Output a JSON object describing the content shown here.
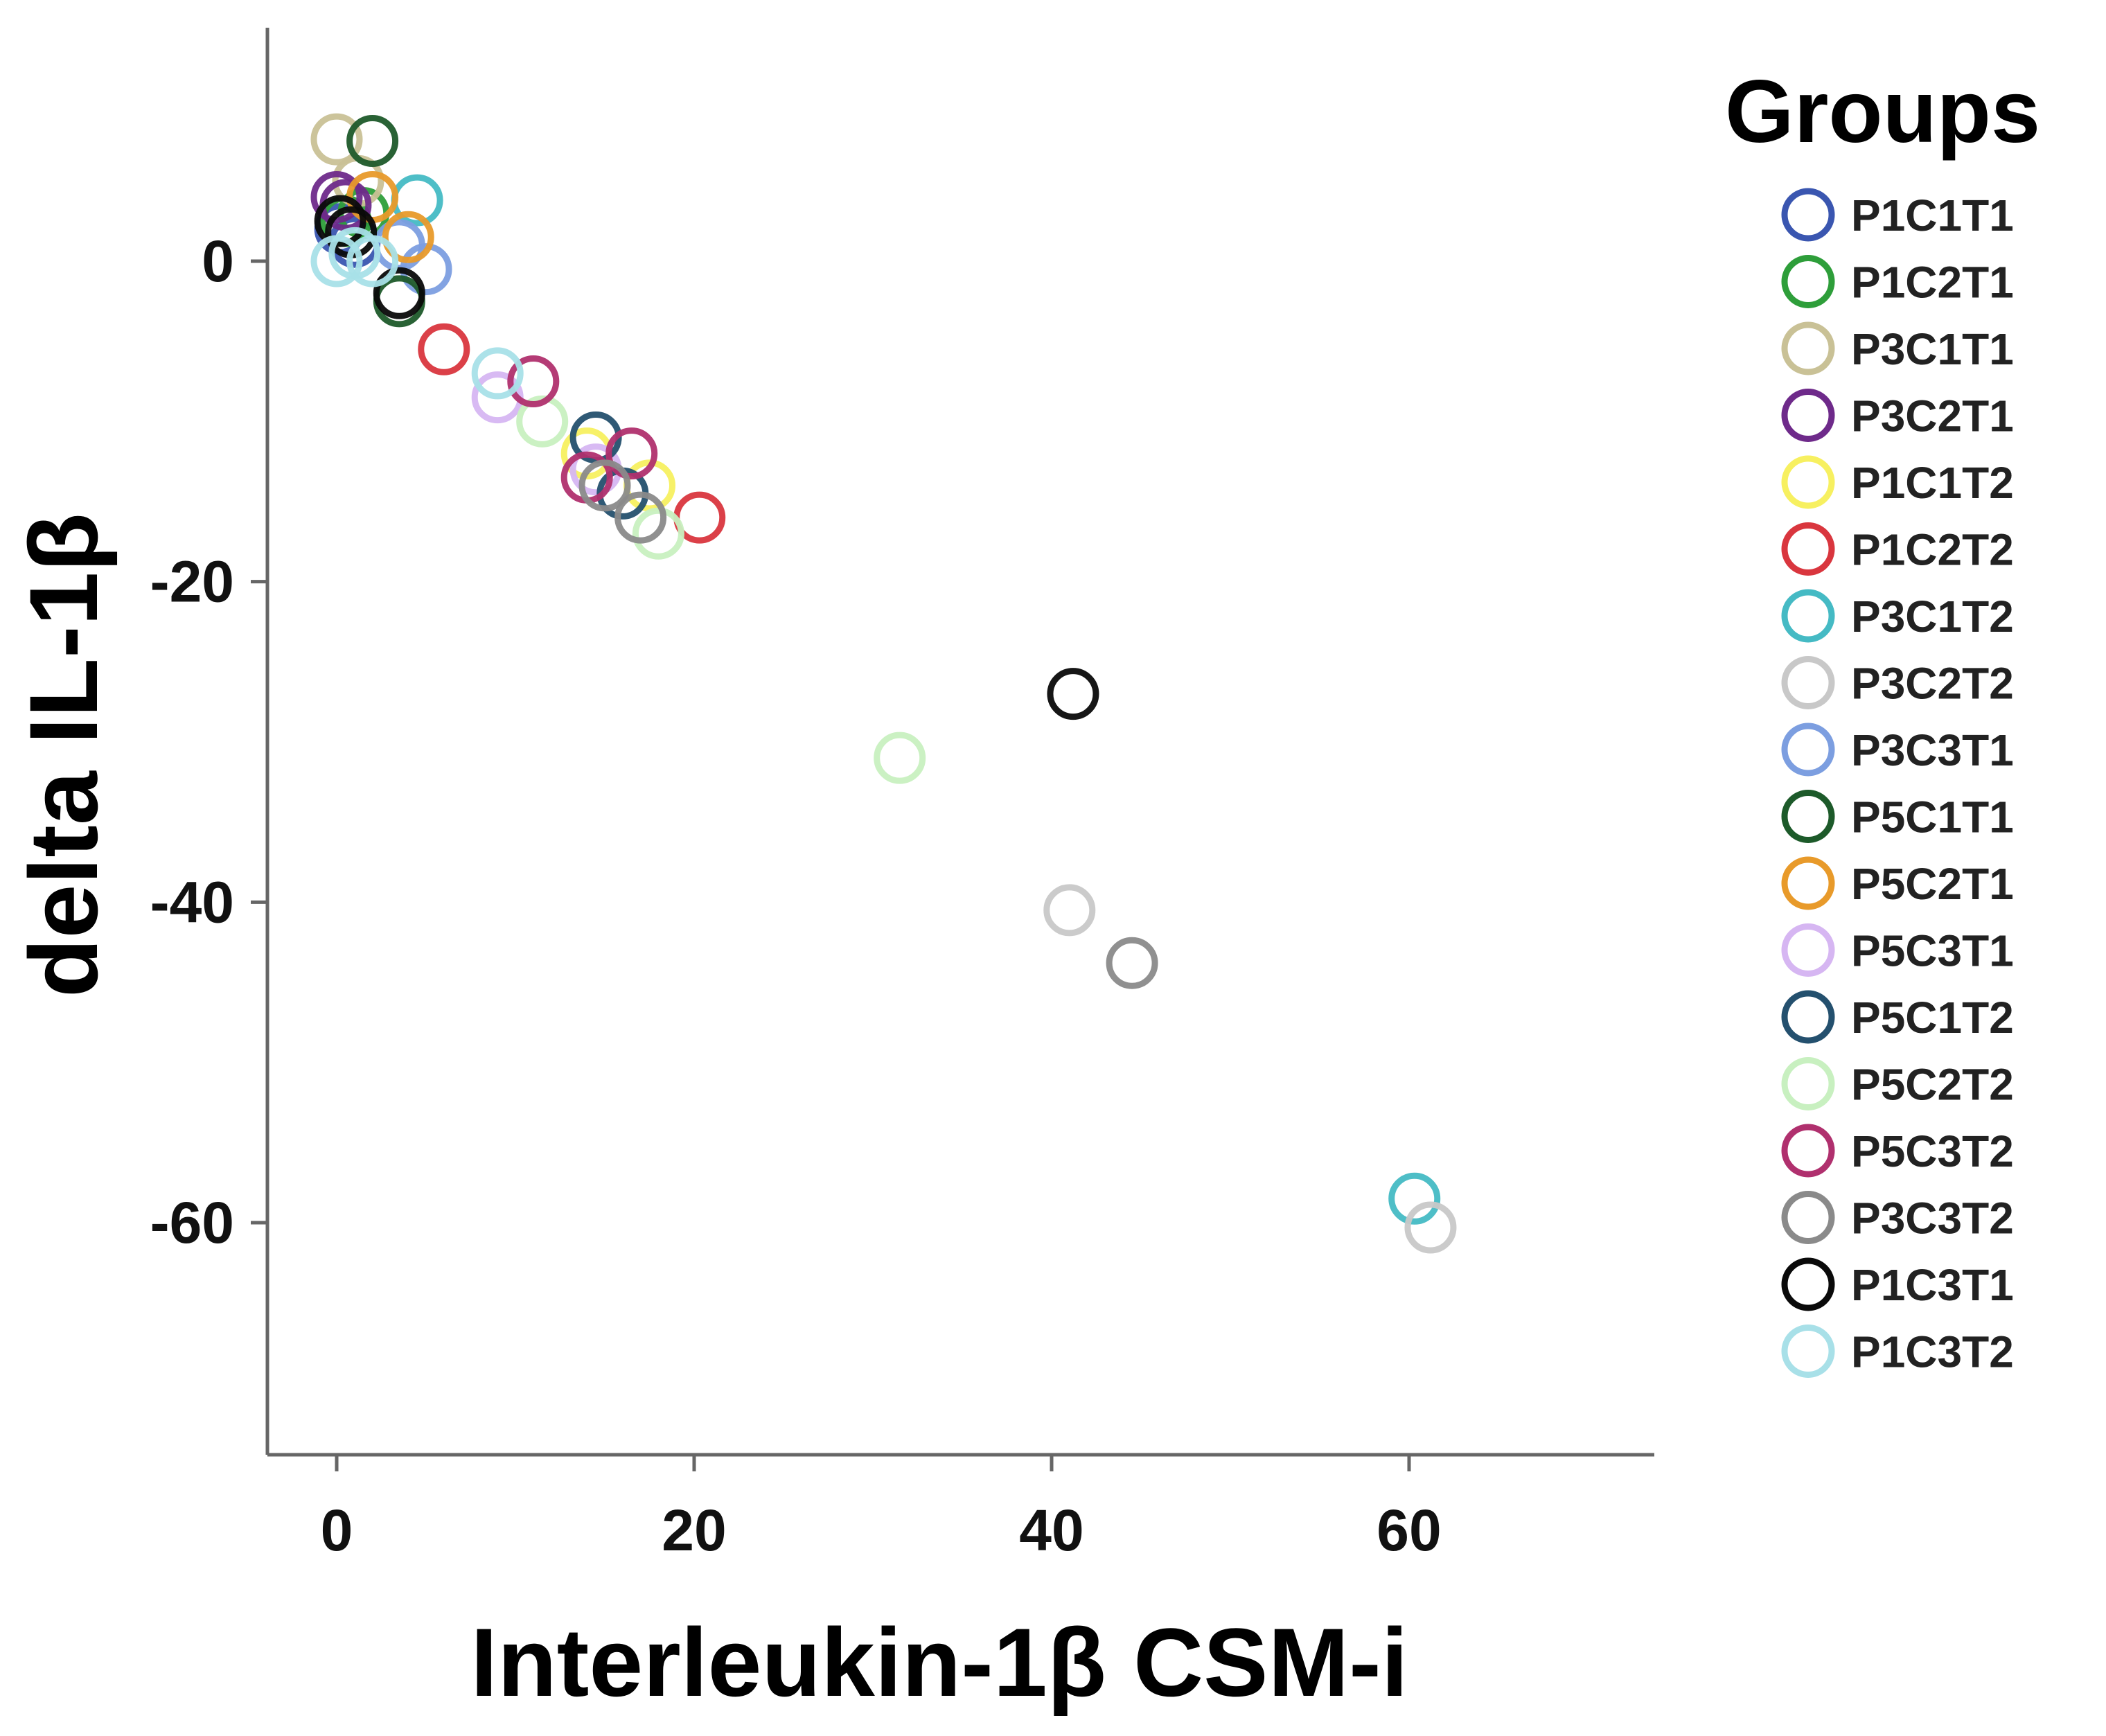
{
  "chart_data": {
    "type": "scatter",
    "title": "",
    "xlabel": "Interleukin-1β CSM-i",
    "ylabel": "delta IL-1β",
    "xlim": [
      -4,
      73
    ],
    "ylim": [
      -74,
      15
    ],
    "xticks": [
      0,
      20,
      40,
      60
    ],
    "yticks": [
      0,
      -20,
      -40,
      -60
    ],
    "legend_title": "Groups",
    "legend_position": "right",
    "grid": false,
    "series": [
      {
        "name": "P1C1T1",
        "color": "#3a56b0",
        "points": [
          [
            0.2,
            2.0
          ],
          [
            1.0,
            1.2
          ]
        ]
      },
      {
        "name": "P1C2T1",
        "color": "#2e9e3a",
        "points": [
          [
            0.5,
            2.5
          ],
          [
            1.5,
            3.0
          ]
        ]
      },
      {
        "name": "P3C1T1",
        "color": "#c9c196",
        "points": [
          [
            0.0,
            7.6
          ],
          [
            1.2,
            5.0
          ]
        ]
      },
      {
        "name": "P3C2T1",
        "color": "#6e2a8a",
        "points": [
          [
            0.0,
            4.0
          ],
          [
            0.5,
            3.5
          ]
        ]
      },
      {
        "name": "P1C1T2",
        "color": "#f7f060",
        "points": [
          [
            14.0,
            -12.0
          ],
          [
            17.5,
            -14.0
          ]
        ]
      },
      {
        "name": "P1C2T2",
        "color": "#d9363e",
        "points": [
          [
            6.0,
            -5.5
          ],
          [
            20.3,
            -16.0
          ]
        ]
      },
      {
        "name": "P3C1T2",
        "color": "#45bac4",
        "points": [
          [
            4.5,
            3.8
          ],
          [
            60.3,
            -58.5
          ]
        ]
      },
      {
        "name": "P3C2T2",
        "color": "#c8c8c8",
        "points": [
          [
            41.0,
            -40.5
          ],
          [
            61.2,
            -60.3
          ]
        ]
      },
      {
        "name": "P3C3T1",
        "color": "#7c9ee0",
        "points": [
          [
            5.0,
            -0.5
          ],
          [
            3.5,
            1.0
          ]
        ]
      },
      {
        "name": "P5C1T1",
        "color": "#1d5a2a",
        "points": [
          [
            2.0,
            7.5
          ],
          [
            3.5,
            -2.5
          ]
        ]
      },
      {
        "name": "P5C2T1",
        "color": "#e89a2a",
        "points": [
          [
            4.0,
            1.5
          ],
          [
            2.0,
            4.0
          ]
        ]
      },
      {
        "name": "P5C3T1",
        "color": "#d6b6f2",
        "points": [
          [
            9.0,
            -8.5
          ],
          [
            14.5,
            -13.0
          ]
        ]
      },
      {
        "name": "P5C1T2",
        "color": "#24506e",
        "points": [
          [
            14.5,
            -11.0
          ],
          [
            16.0,
            -14.5
          ]
        ]
      },
      {
        "name": "P5C2T2",
        "color": "#c8f0c0",
        "points": [
          [
            11.5,
            -10.0
          ],
          [
            18.0,
            -17.0
          ],
          [
            31.5,
            -31.0
          ]
        ]
      },
      {
        "name": "P5C3T2",
        "color": "#b0306e",
        "points": [
          [
            11.0,
            -7.5
          ],
          [
            16.5,
            -12.0
          ],
          [
            14.0,
            -13.5
          ]
        ]
      },
      {
        "name": "P3C3T2",
        "color": "#8a8a8a",
        "points": [
          [
            15.0,
            -14.0
          ],
          [
            17.0,
            -16.0
          ],
          [
            44.5,
            -43.8
          ]
        ]
      },
      {
        "name": "P1C3T1",
        "color": "#0a0a0a",
        "points": [
          [
            0.2,
            2.5
          ],
          [
            0.8,
            1.8
          ],
          [
            3.5,
            -2.0
          ],
          [
            41.2,
            -27.0
          ]
        ]
      },
      {
        "name": "P1C3T2",
        "color": "#a8e0e8",
        "points": [
          [
            0.0,
            0.0
          ],
          [
            1.0,
            0.5
          ],
          [
            2.0,
            0.0
          ],
          [
            9.0,
            -7.0
          ]
        ]
      }
    ]
  }
}
